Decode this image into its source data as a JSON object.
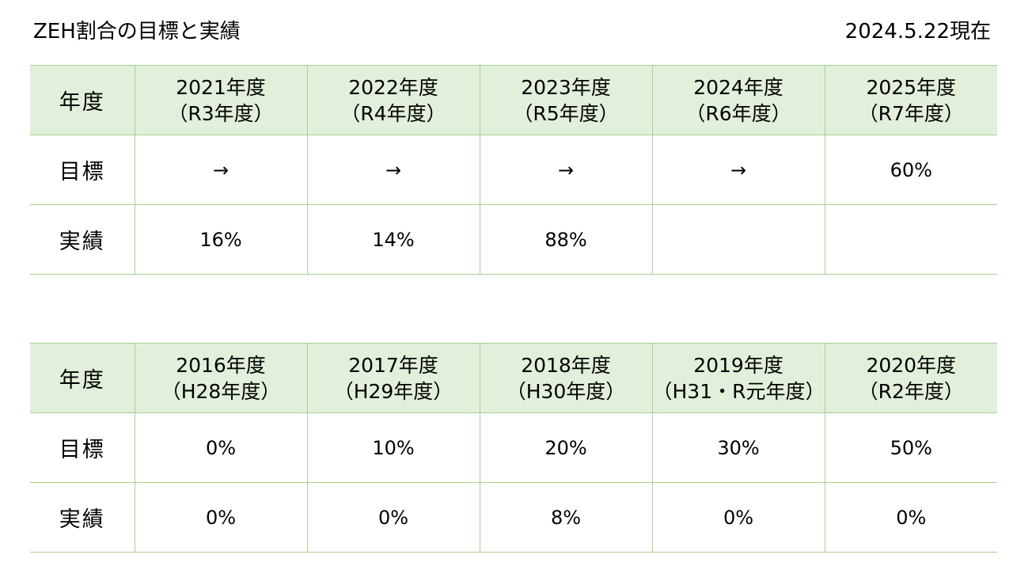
{
  "header": {
    "title": "ZEH割合の目標と実績",
    "as_of": "2024.5.22現在"
  },
  "table_recent": {
    "row_labels": {
      "year": "年度",
      "target": "目標",
      "actual": "実績"
    },
    "columns": [
      {
        "year": "2021年度",
        "era": "（R3年度）",
        "target": "→",
        "actual": "16%"
      },
      {
        "year": "2022年度",
        "era": "（R4年度）",
        "target": "→",
        "actual": "14%"
      },
      {
        "year": "2023年度",
        "era": "（R5年度）",
        "target": "→",
        "actual": "88%"
      },
      {
        "year": "2024年度",
        "era": "（R6年度）",
        "target": "→",
        "actual": ""
      },
      {
        "year": "2025年度",
        "era": "（R7年度）",
        "target": "60%",
        "actual": ""
      }
    ]
  },
  "table_past": {
    "row_labels": {
      "year": "年度",
      "target": "目標",
      "actual": "実績"
    },
    "columns": [
      {
        "year": "2016年度",
        "era": "（H28年度）",
        "target": "0%",
        "actual": "0%"
      },
      {
        "year": "2017年度",
        "era": "（H29年度）",
        "target": "10%",
        "actual": "0%"
      },
      {
        "year": "2018年度",
        "era": "（H30年度）",
        "target": "20%",
        "actual": "8%"
      },
      {
        "year": "2019年度",
        "era": "（H31・R元年度）",
        "target": "30%",
        "actual": "0%"
      },
      {
        "year": "2020年度",
        "era": "（R2年度）",
        "target": "50%",
        "actual": "0%"
      }
    ]
  },
  "colors": {
    "header_fill": "#e2efda",
    "border": "#a8d08d"
  }
}
